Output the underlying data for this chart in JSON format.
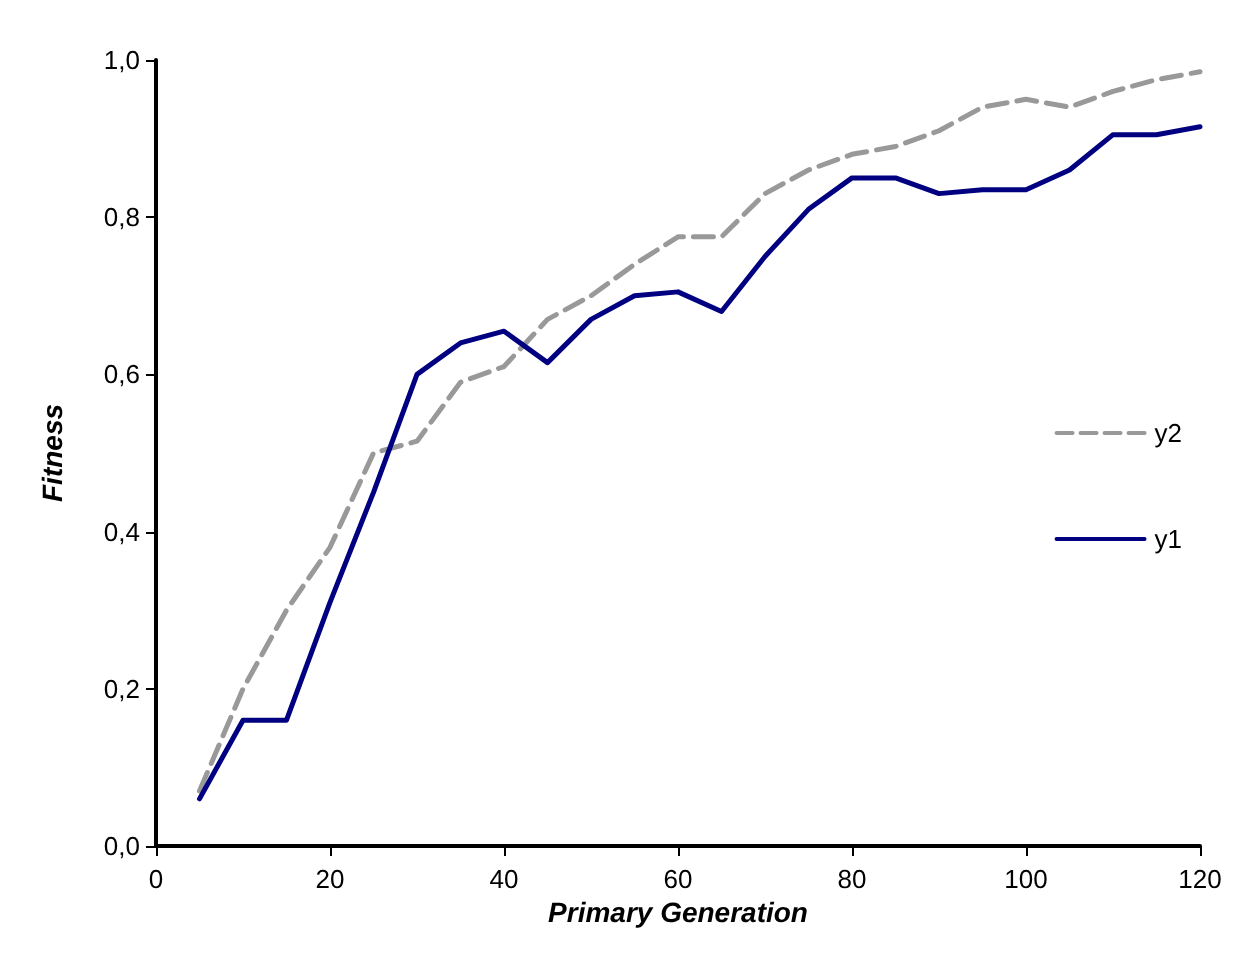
{
  "chart_data": {
    "type": "line",
    "xlabel": "Primary Generation",
    "ylabel": "Fitness",
    "x": [
      5,
      10,
      15,
      20,
      25,
      30,
      35,
      40,
      45,
      50,
      55,
      60,
      65,
      70,
      75,
      80,
      85,
      90,
      95,
      100,
      105,
      110,
      115,
      120
    ],
    "series": [
      {
        "name": "y2",
        "color": "#999999",
        "line_style": "dashed",
        "values": [
          0.07,
          0.2,
          0.3,
          0.38,
          0.5,
          0.515,
          0.59,
          0.61,
          0.67,
          0.7,
          0.74,
          0.775,
          0.775,
          0.83,
          0.86,
          0.88,
          0.89,
          0.91,
          0.94,
          0.95,
          0.94,
          0.96,
          0.975,
          0.985
        ]
      },
      {
        "name": "y1",
        "color": "#000080",
        "line_style": "solid",
        "values": [
          0.06,
          0.16,
          0.16,
          0.31,
          0.45,
          0.6,
          0.64,
          0.655,
          0.615,
          0.67,
          0.7,
          0.705,
          0.68,
          0.75,
          0.81,
          0.85,
          0.85,
          0.83,
          0.835,
          0.835,
          0.86,
          0.905,
          0.905,
          0.915
        ]
      }
    ],
    "xlim": [
      0,
      120
    ],
    "xticks": [
      0,
      20,
      40,
      60,
      80,
      100,
      120
    ],
    "ylim": [
      0,
      1
    ],
    "yticks": [
      {
        "value": 0,
        "label": "0,0"
      },
      {
        "value": 0.2,
        "label": "0,2"
      },
      {
        "value": 0.4,
        "label": "0,4"
      },
      {
        "value": 0.6,
        "label": "0,6"
      },
      {
        "value": 0.8,
        "label": "0,8"
      },
      {
        "value": 1,
        "label": "1,0"
      }
    ],
    "grid": false,
    "legend": "right",
    "marker": "none"
  }
}
